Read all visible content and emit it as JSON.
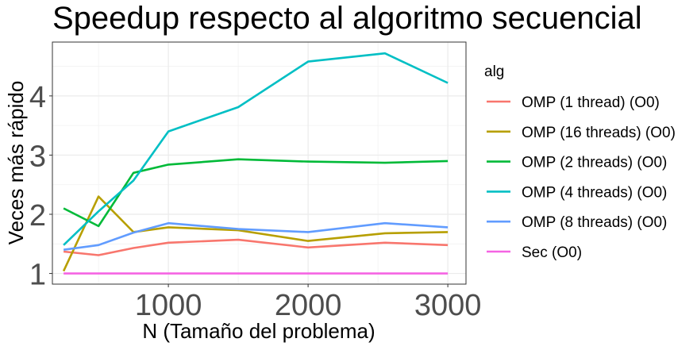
{
  "chart_data": {
    "type": "line",
    "title": "Speedup respecto al algoritmo secuencial",
    "xlabel": "N (Tamaño del problema)",
    "ylabel": "Veces más rápido",
    "xlim": [
      170,
      3130
    ],
    "ylim": [
      0.82,
      4.91
    ],
    "x_ticks": [
      1000,
      2000,
      3000
    ],
    "y_ticks": [
      1,
      2,
      3,
      4
    ],
    "x_minor_ticks": [
      500,
      1500,
      2500
    ],
    "y_minor_ticks": [
      1.5,
      2.5,
      3.5,
      4.5
    ],
    "grid": true,
    "legend_title": "alg",
    "legend_position": "right",
    "x": [
      250,
      500,
      750,
      1000,
      1500,
      2000,
      2550,
      3000
    ],
    "series": [
      {
        "name": "OMP (1 thread) (O0)",
        "color": "#F8766D",
        "values": [
          1.37,
          1.31,
          1.43,
          1.52,
          1.57,
          1.44,
          1.52,
          1.48
        ]
      },
      {
        "name": "OMP (16 threads) (O0)",
        "color": "#B79F00",
        "values": [
          1.04,
          2.3,
          1.7,
          1.78,
          1.73,
          1.55,
          1.68,
          1.7
        ]
      },
      {
        "name": "OMP (2 threads) (O0)",
        "color": "#00BA38",
        "values": [
          2.1,
          1.8,
          2.7,
          2.84,
          2.93,
          2.89,
          2.87,
          2.9
        ]
      },
      {
        "name": "OMP (4 threads) (O0)",
        "color": "#00BFC4",
        "values": [
          1.48,
          2.05,
          2.57,
          3.4,
          3.81,
          4.58,
          4.72,
          4.22
        ]
      },
      {
        "name": "OMP (8 threads) (O0)",
        "color": "#619CFF",
        "values": [
          1.4,
          1.48,
          1.69,
          1.85,
          1.75,
          1.7,
          1.85,
          1.78
        ]
      },
      {
        "name": "Sec (O0)",
        "color": "#F564E3",
        "values": [
          1,
          1,
          1,
          1,
          1,
          1,
          1,
          1
        ]
      }
    ]
  }
}
